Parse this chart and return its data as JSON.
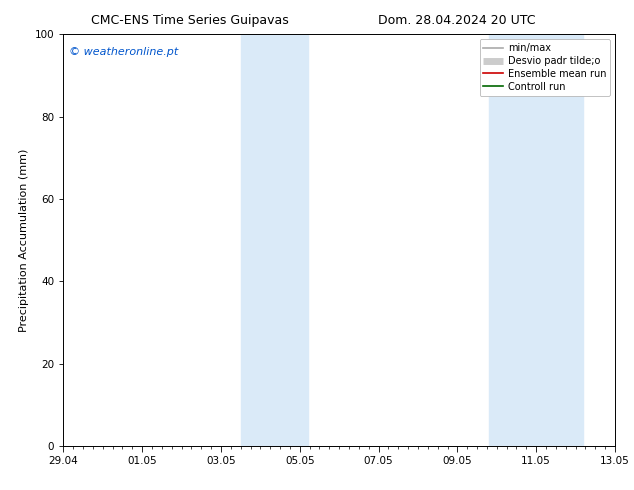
{
  "title_left": "CMC-ENS Time Series Guipavas",
  "title_right": "Dom. 28.04.2024 20 UTC",
  "ylabel": "Precipitation Accumulation (mm)",
  "watermark": "© weatheronline.pt",
  "ylim": [
    0,
    100
  ],
  "yticks": [
    0,
    20,
    40,
    60,
    80,
    100
  ],
  "x_start": 0,
  "x_end": 14,
  "xtick_labels": [
    "29.04",
    "01.05",
    "03.05",
    "05.05",
    "07.05",
    "09.05",
    "11.05",
    "13.05"
  ],
  "xtick_positions": [
    0,
    2,
    4,
    6,
    8,
    10,
    12,
    14
  ],
  "shade_bands": [
    {
      "xmin": 4.5,
      "xmax": 6.2,
      "color": "#daeaf8"
    },
    {
      "xmin": 10.8,
      "xmax": 13.2,
      "color": "#daeaf8"
    }
  ],
  "legend_entries": [
    {
      "label": "min/max",
      "color": "#aaaaaa",
      "lw": 1.2,
      "style": "line"
    },
    {
      "label": "Desvio padr tilde;o",
      "color": "#cccccc",
      "lw": 5,
      "style": "thick"
    },
    {
      "label": "Ensemble mean run",
      "color": "#cc0000",
      "lw": 1.2,
      "style": "line"
    },
    {
      "label": "Controll run",
      "color": "#006600",
      "lw": 1.2,
      "style": "line"
    }
  ],
  "background_color": "#ffffff",
  "plot_bg_color": "#ffffff",
  "title_fontsize": 9,
  "watermark_color": "#0055cc",
  "watermark_fontsize": 8,
  "tick_label_fontsize": 7.5,
  "ylabel_fontsize": 8,
  "legend_fontsize": 7
}
